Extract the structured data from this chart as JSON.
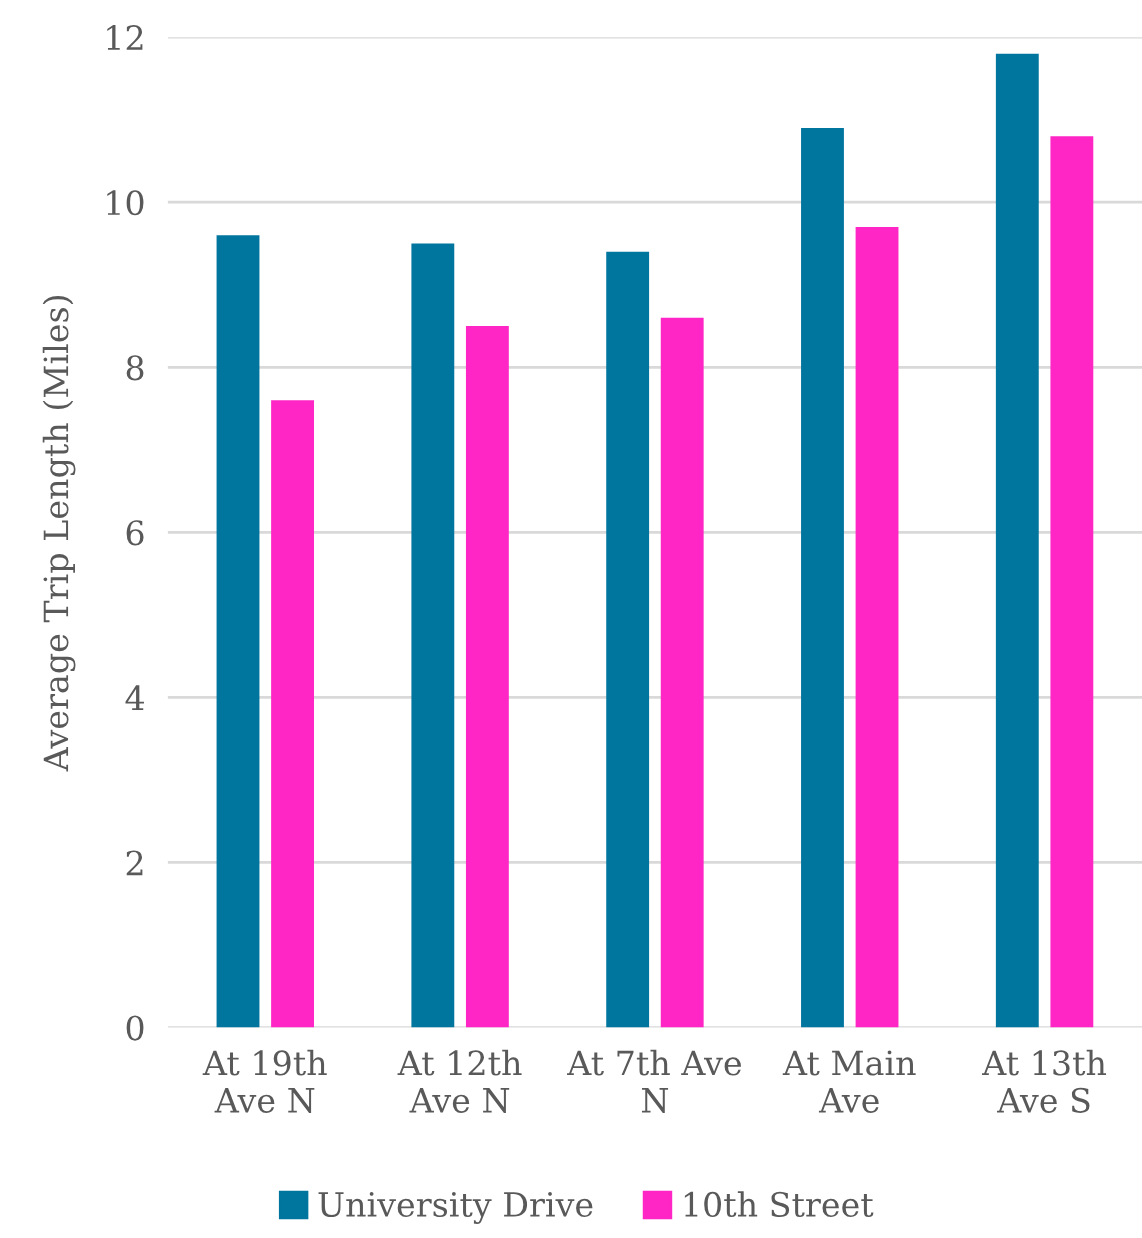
{
  "chart_data": {
    "type": "bar",
    "ylabel": "Average Trip Length (Miles)",
    "categories": [
      "At 19th Ave N",
      "At 12th Ave N",
      "At 7th Ave N",
      "At Main Ave",
      "At 13th Ave S"
    ],
    "series": [
      {
        "name": "University Drive",
        "color": "#00759e",
        "values": [
          9.6,
          9.5,
          9.4,
          10.9,
          11.8
        ]
      },
      {
        "name": "10th Street",
        "color": "#ff26c5",
        "values": [
          7.6,
          8.5,
          8.6,
          9.7,
          10.8
        ]
      }
    ],
    "ylim": [
      0,
      12
    ],
    "yticks": [
      0,
      2,
      4,
      6,
      8,
      10,
      12
    ],
    "grid": "y",
    "legend": "bottom"
  }
}
